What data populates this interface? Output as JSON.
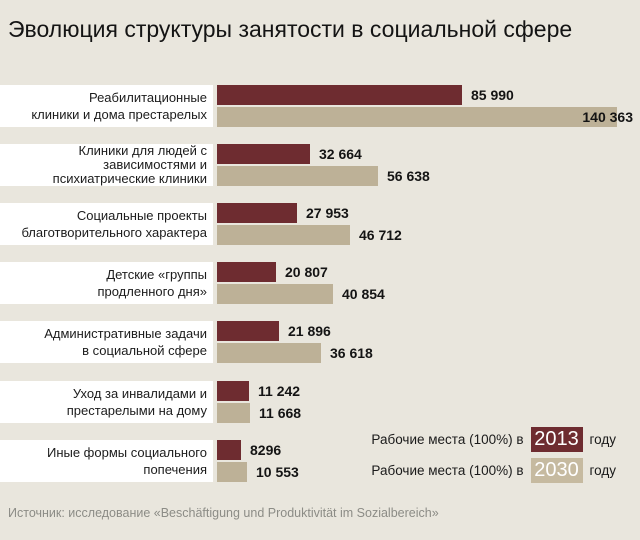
{
  "title": "Эволюция структуры занятости в социальной сфере",
  "source": "Источник: исследование «Beschäftigung und Produktivität im Sozialbereich»",
  "legend": {
    "row_2013": {
      "label": "Рабочие места (100%) в",
      "year": "2013",
      "suffix": "году"
    },
    "row_2030": {
      "label": "Рабочие места (100%) в",
      "year": "2030",
      "suffix": "году"
    }
  },
  "colors": {
    "background": "#e9e6dd",
    "label_band": "#ffffff",
    "series_2013": "#6e2c30",
    "series_2030": "#bdb197"
  },
  "rows": [
    {
      "label_lines": [
        "Реабилитационные",
        "клиники и дома престарелых"
      ],
      "v2013": 85990,
      "v2013_label": "85 990",
      "v2030": 140363,
      "v2030_label": "140 363"
    },
    {
      "label_lines": [
        "Клиники для людей с",
        "зависимостями и",
        "психиатрические клиники"
      ],
      "v2013": 32664,
      "v2013_label": "32 664",
      "v2030": 56638,
      "v2030_label": "56 638"
    },
    {
      "label_lines": [
        "Социальные проекты",
        "благотворительного характера"
      ],
      "v2013": 27953,
      "v2013_label": "27 953",
      "v2030": 46712,
      "v2030_label": "46 712"
    },
    {
      "label_lines": [
        "Детские «группы",
        "продленного дня»"
      ],
      "v2013": 20807,
      "v2013_label": "20 807",
      "v2030": 40854,
      "v2030_label": "40 854"
    },
    {
      "label_lines": [
        "Административные задачи",
        "в социальной сфере"
      ],
      "v2013": 21896,
      "v2013_label": "21 896",
      "v2030": 36618,
      "v2030_label": "36 618"
    },
    {
      "label_lines": [
        "Уход за инвалидами и",
        "престарелыми на дому"
      ],
      "v2013": 11242,
      "v2013_label": "11 242",
      "v2030": 11668,
      "v2030_label": "11 668"
    },
    {
      "label_lines": [
        "Иные формы социального",
        "попечения"
      ],
      "v2013": 8296,
      "v2013_label": "8296",
      "v2030": 10553,
      "v2030_label": "10 553"
    }
  ],
  "chart_data": {
    "type": "bar",
    "orientation": "horizontal",
    "title": "Эволюция структуры занятости в социальной сфере",
    "categories": [
      "Реабилитационные клиники и дома престарелых",
      "Клиники для людей с зависимостями и психиатрические клиники",
      "Социальные проекты благотворительного характера",
      "Детские «группы продленного дня»",
      "Административные задачи в социальной сфере",
      "Уход за инвалидами и престарелыми на дому",
      "Иные формы социального попечения"
    ],
    "series": [
      {
        "name": "Рабочие места (100%) в 2013 году",
        "color": "#6e2c30",
        "values": [
          85990,
          32664,
          27953,
          20807,
          21896,
          11242,
          8296
        ]
      },
      {
        "name": "Рабочие места (100%) в 2030 году",
        "color": "#bdb197",
        "values": [
          140363,
          56638,
          46712,
          40854,
          36618,
          11668,
          10553
        ]
      }
    ],
    "value_labels": true,
    "xlim": [
      0,
      140363
    ],
    "grid": false,
    "legend_position": "bottom-right",
    "source": "Источник: исследование «Beschäftigung und Produktivität im Sozialbereich»"
  }
}
